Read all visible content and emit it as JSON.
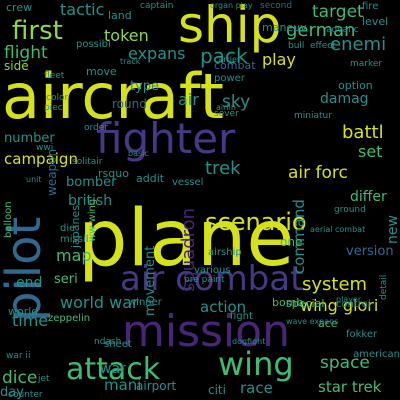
{
  "palette": {
    "yellow": "#d5e21a",
    "lime": "#8fd744",
    "green": "#3fbc73",
    "teal": "#21918c",
    "blue": "#31688e",
    "indigo": "#443983",
    "purple": "#482677",
    "violet": "#440154"
  },
  "words": [
    {
      "text": "aircraft",
      "color": "yellow"
    },
    {
      "text": "plane",
      "color": "yellow"
    },
    {
      "text": "ship",
      "color": "yellow"
    },
    {
      "text": "fighter",
      "color": "indigo"
    },
    {
      "text": "mission",
      "color": "purple"
    },
    {
      "text": "pilot",
      "color": "blue"
    },
    {
      "text": "air combat",
      "color": "indigo"
    },
    {
      "text": "scenario",
      "color": "yellow"
    },
    {
      "text": "first",
      "color": "lime"
    },
    {
      "text": "attack",
      "color": "green"
    },
    {
      "text": "wing",
      "color": "green"
    },
    {
      "text": "world war",
      "color": "teal"
    },
    {
      "text": "flight",
      "color": "green"
    },
    {
      "text": "expans",
      "color": "teal"
    },
    {
      "text": "pack",
      "color": "teal"
    },
    {
      "text": "german",
      "color": "green"
    },
    {
      "text": "enemi",
      "color": "teal"
    },
    {
      "text": "target",
      "color": "green"
    },
    {
      "text": "campaign",
      "color": "yellow"
    },
    {
      "text": "number",
      "color": "teal"
    },
    {
      "text": "battl",
      "color": "yellow"
    },
    {
      "text": "trek",
      "color": "teal"
    },
    {
      "text": "air forc",
      "color": "yellow"
    },
    {
      "text": "squadron",
      "color": "purple"
    },
    {
      "text": "system",
      "color": "yellow"
    },
    {
      "text": "star trek",
      "color": "green"
    },
    {
      "text": "space",
      "color": "green"
    },
    {
      "text": "action",
      "color": "teal"
    },
    {
      "text": "british",
      "color": "teal"
    },
    {
      "text": "bomber",
      "color": "teal"
    },
    {
      "text": "movement",
      "color": "teal"
    },
    {
      "text": "tactic",
      "color": "teal"
    },
    {
      "text": "token",
      "color": "lime"
    },
    {
      "text": "play",
      "color": "yellow"
    },
    {
      "text": "set",
      "color": "green"
    },
    {
      "text": "sky",
      "color": "teal"
    },
    {
      "text": "air",
      "color": "teal"
    },
    {
      "text": "round",
      "color": "blue"
    },
    {
      "text": "combat",
      "color": "blue"
    },
    {
      "text": "differ",
      "color": "green"
    },
    {
      "text": "map",
      "color": "green"
    },
    {
      "text": "end",
      "color": "teal"
    },
    {
      "text": "time",
      "color": "teal"
    },
    {
      "text": "dice",
      "color": "green"
    },
    {
      "text": "day",
      "color": "teal"
    },
    {
      "text": "new",
      "color": "teal"
    },
    {
      "text": "seri",
      "color": "green"
    },
    {
      "text": "wing glori",
      "color": "yellow"
    },
    {
      "text": "command",
      "color": "teal"
    },
    {
      "text": "version",
      "color": "blue"
    },
    {
      "text": "mani",
      "color": "teal"
    },
    {
      "text": "airport",
      "color": "teal"
    },
    {
      "text": "citi",
      "color": "teal"
    },
    {
      "text": "race",
      "color": "teal"
    },
    {
      "text": "weapon",
      "color": "blue"
    },
    {
      "text": "addit",
      "color": "teal"
    },
    {
      "text": "crew",
      "color": "teal"
    },
    {
      "text": "land",
      "color": "teal"
    },
    {
      "text": "second",
      "color": "blue"
    },
    {
      "text": "damag",
      "color": "teal"
    },
    {
      "text": "level",
      "color": "teal"
    },
    {
      "text": "fire",
      "color": "teal"
    },
    {
      "text": "side",
      "color": "lime"
    },
    {
      "text": "type",
      "color": "teal"
    },
    {
      "text": "move",
      "color": "teal"
    },
    {
      "text": "special",
      "color": "green"
    },
    {
      "text": "zeppelin",
      "color": "green"
    },
    {
      "text": "balloon",
      "color": "green"
    },
    {
      "text": "japanes",
      "color": "teal"
    },
    {
      "text": "ww wing",
      "color": "green"
    },
    {
      "text": "war",
      "color": "teal"
    },
    {
      "text": "world",
      "color": "teal"
    },
    {
      "text": "bomb",
      "color": "green"
    },
    {
      "text": "one",
      "color": "green"
    },
    {
      "text": "various",
      "color": "teal"
    },
    {
      "text": "winner",
      "color": "teal"
    },
    {
      "text": "fight",
      "color": "teal"
    },
    {
      "text": "control",
      "color": "teal"
    },
    {
      "text": "detail",
      "color": "teal"
    },
    {
      "text": "fokker",
      "color": "teal"
    },
    {
      "text": "ace",
      "color": "green"
    },
    {
      "text": "player",
      "color": "teal"
    },
    {
      "text": "ground",
      "color": "teal"
    },
    {
      "text": "american",
      "color": "teal"
    },
    {
      "text": "vessel",
      "color": "teal"
    },
    {
      "text": "airship",
      "color": "teal"
    },
    {
      "text": "rsquo",
      "color": "teal"
    },
    {
      "text": "option",
      "color": "teal"
    },
    {
      "text": "bull",
      "color": "teal"
    },
    {
      "text": "effect",
      "color": "teal"
    },
    {
      "text": "maneuv",
      "color": "teal"
    },
    {
      "text": "captain",
      "color": "teal"
    },
    {
      "text": "organ play",
      "color": "teal"
    },
    {
      "text": "power",
      "color": "teal"
    },
    {
      "text": "possibl",
      "color": "teal"
    },
    {
      "text": "fleet",
      "color": "teal"
    },
    {
      "text": "marker",
      "color": "teal"
    },
    {
      "text": "basic",
      "color": "teal"
    },
    {
      "text": "sever",
      "color": "teal"
    },
    {
      "text": "miniatur",
      "color": "teal"
    },
    {
      "text": "solitair",
      "color": "teal"
    },
    {
      "text": "missil",
      "color": "teal"
    },
    {
      "text": "die",
      "color": "teal"
    },
    {
      "text": "pre paint",
      "color": "teal"
    },
    {
      "text": "counter",
      "color": "teal"
    },
    {
      "text": "sheet",
      "color": "teal"
    },
    {
      "text": "ndash",
      "color": "teal"
    },
    {
      "text": "jet",
      "color": "teal"
    },
    {
      "text": "war ii",
      "color": "teal"
    },
    {
      "text": "aerial combat",
      "color": "teal"
    },
    {
      "text": "wave expans",
      "color": "teal"
    },
    {
      "text": "dogfight",
      "color": "teal"
    },
    {
      "text": "advanc",
      "color": "teal"
    },
    {
      "text": "airlin",
      "color": "teal"
    },
    {
      "text": "carrier",
      "color": "teal"
    },
    {
      "text": "color",
      "color": "teal"
    },
    {
      "text": "piec",
      "color": "teal"
    },
    {
      "text": "track",
      "color": "teal"
    },
    {
      "text": "order",
      "color": "teal"
    },
    {
      "text": "wwi",
      "color": "teal"
    },
    {
      "text": "unit",
      "color": "teal"
    }
  ]
}
